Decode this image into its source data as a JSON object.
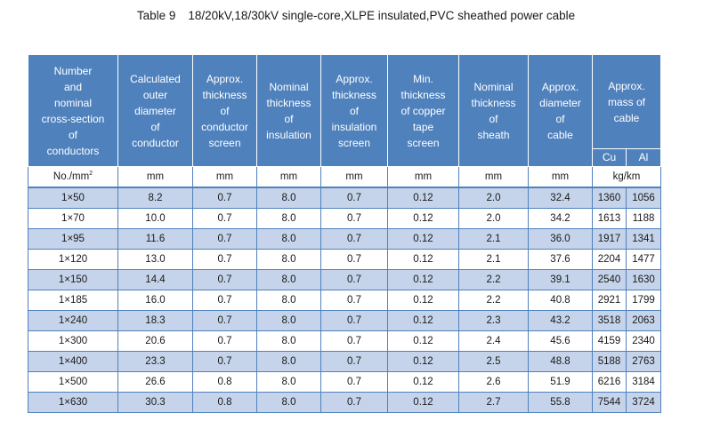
{
  "title": {
    "number": "Table 9",
    "text": "18/20kV,18/30kV single-core,XLPE insulated,PVC sheathed power cable"
  },
  "headers": {
    "col1": [
      "Number",
      "and",
      "nominal",
      "cross-section",
      "of",
      "conductors"
    ],
    "col2": [
      "Calculated",
      "outer",
      "diameter",
      "of",
      "conductor"
    ],
    "col3": [
      "Approx.",
      "thickness",
      "of",
      "conductor",
      "screen"
    ],
    "col4": [
      "Nominal",
      "thickness",
      "of",
      "insulation"
    ],
    "col5": [
      "Approx.",
      "thickness",
      "of",
      "insulation",
      "screen"
    ],
    "col6": [
      "Min.",
      "thickness",
      "of copper",
      "tape",
      "screen"
    ],
    "col7": [
      "Nominal",
      "thickness",
      "of",
      "sheath"
    ],
    "col8": [
      "Approx.",
      "diameter",
      "of",
      "cable"
    ],
    "col9": [
      "Approx.",
      "mass of",
      "cable"
    ],
    "sub_cu": "Cu",
    "sub_al": "Al"
  },
  "units": {
    "size": "No./mm",
    "size_sup": "2",
    "c2": "mm",
    "c3": "mm",
    "c4": "mm",
    "c5": "mm",
    "c6": "mm",
    "c7": "mm",
    "c8": "mm",
    "mass": "kg/km"
  },
  "rows": [
    [
      "1×50",
      "8.2",
      "0.7",
      "8.0",
      "0.7",
      "0.12",
      "2.0",
      "32.4",
      "1360",
      "1056"
    ],
    [
      "1×70",
      "10.0",
      "0.7",
      "8.0",
      "0.7",
      "0.12",
      "2.0",
      "34.2",
      "1613",
      "1188"
    ],
    [
      "1×95",
      "11.6",
      "0.7",
      "8.0",
      "0.7",
      "0.12",
      "2.1",
      "36.0",
      "1917",
      "1341"
    ],
    [
      "1×120",
      "13.0",
      "0.7",
      "8.0",
      "0.7",
      "0.12",
      "2.1",
      "37.6",
      "2204",
      "1477"
    ],
    [
      "1×150",
      "14.4",
      "0.7",
      "8.0",
      "0.7",
      "0.12",
      "2.2",
      "39.1",
      "2540",
      "1630"
    ],
    [
      "1×185",
      "16.0",
      "0.7",
      "8.0",
      "0.7",
      "0.12",
      "2.2",
      "40.8",
      "2921",
      "1799"
    ],
    [
      "1×240",
      "18.3",
      "0.7",
      "8.0",
      "0.7",
      "0.12",
      "2.3",
      "43.2",
      "3518",
      "2063"
    ],
    [
      "1×300",
      "20.6",
      "0.7",
      "8.0",
      "0.7",
      "0.12",
      "2.4",
      "45.6",
      "4159",
      "2340"
    ],
    [
      "1×400",
      "23.3",
      "0.7",
      "8.0",
      "0.7",
      "0.12",
      "2.5",
      "48.8",
      "5188",
      "2763"
    ],
    [
      "1×500",
      "26.6",
      "0.8",
      "8.0",
      "0.7",
      "0.12",
      "2.6",
      "51.9",
      "6216",
      "3184"
    ],
    [
      "1×630",
      "30.3",
      "0.8",
      "8.0",
      "0.7",
      "0.12",
      "2.7",
      "55.8",
      "7544",
      "3724"
    ]
  ],
  "colors": {
    "header_bg": "#4f81bd",
    "alt_row_bg": "#c5d4ea",
    "plain_row_bg": "#ffffff",
    "header_text": "#ffffff"
  }
}
